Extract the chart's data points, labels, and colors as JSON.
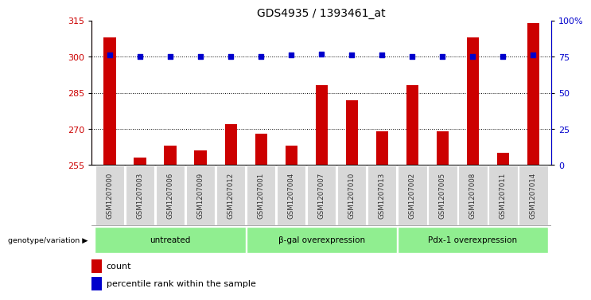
{
  "title": "GDS4935 / 1393461_at",
  "samples": [
    "GSM1207000",
    "GSM1207003",
    "GSM1207006",
    "GSM1207009",
    "GSM1207012",
    "GSM1207001",
    "GSM1207004",
    "GSM1207007",
    "GSM1207010",
    "GSM1207013",
    "GSM1207002",
    "GSM1207005",
    "GSM1207008",
    "GSM1207011",
    "GSM1207014"
  ],
  "counts": [
    308,
    258,
    263,
    261,
    272,
    268,
    263,
    288,
    282,
    269,
    288,
    269,
    308,
    260,
    314
  ],
  "percentile_ranks": [
    76,
    75,
    75,
    75,
    75,
    75,
    76,
    77,
    76,
    76,
    75,
    75,
    75,
    75,
    76
  ],
  "groups": [
    {
      "label": "untreated",
      "start": 0,
      "end": 4
    },
    {
      "label": "β-gal overexpression",
      "start": 5,
      "end": 9
    },
    {
      "label": "Pdx-1 overexpression",
      "start": 10,
      "end": 14
    }
  ],
  "ylim_left": [
    255,
    315
  ],
  "ylim_right": [
    0,
    100
  ],
  "yticks_left": [
    255,
    270,
    285,
    300,
    315
  ],
  "yticks_right": [
    0,
    25,
    50,
    75,
    100
  ],
  "ytick_right_labels": [
    "0",
    "25",
    "50",
    "75",
    "100%"
  ],
  "bar_color": "#cc0000",
  "dot_color": "#0000cc",
  "tick_bg_color": "#d8d8d8",
  "group_bg_color": "#90ee90",
  "left_axis_color": "#cc0000",
  "right_axis_color": "#0000cc",
  "gridline_color": "#000000",
  "xlim": [
    -0.6,
    14.6
  ]
}
